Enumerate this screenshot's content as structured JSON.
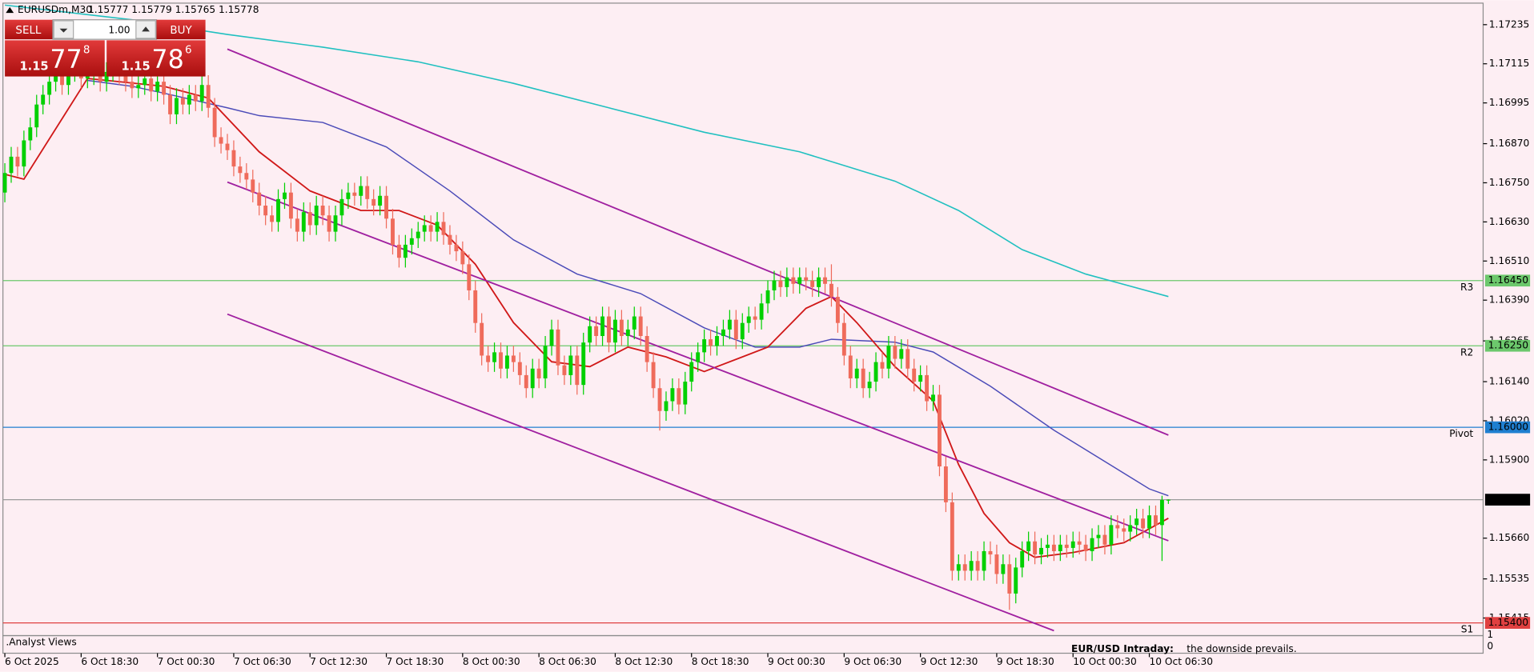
{
  "chart_data": {
    "type": "candlestick",
    "title": "EURUSDm,M30",
    "ohlc_text": "1.15777 1.15779 1.15765 1.15778",
    "open": [
      1.1672,
      1.1678,
      1.1683,
      1.168,
      1.1688,
      1.1692,
      1.1699,
      1.1702,
      1.1706,
      1.1708,
      1.1705,
      1.1709,
      1.171,
      1.1707,
      1.1708,
      1.171,
      1.1706,
      1.1709,
      1.1711,
      1.1708,
      1.1706,
      1.1704,
      1.1705,
      1.1707,
      1.1703,
      1.1706,
      1.1702,
      1.1696,
      1.1701,
      1.1699,
      1.1702,
      1.17,
      1.1705,
      1.1698,
      1.1689,
      1.1687,
      1.1685,
      1.168,
      1.1678,
      1.1676,
      1.1672,
      1.1668,
      1.1665,
      1.1663,
      1.167,
      1.1672,
      1.1664,
      1.166,
      1.1666,
      1.1662,
      1.1668,
      1.1665,
      1.166,
      1.1665,
      1.167,
      1.1672,
      1.1671,
      1.1674,
      1.167,
      1.1668,
      1.1671,
      1.1664,
      1.1656,
      1.1652,
      1.1656,
      1.1658,
      1.166,
      1.1662,
      1.166,
      1.1663,
      1.1659,
      1.1656,
      1.1654,
      1.165,
      1.1642,
      1.1632,
      1.1622,
      1.162,
      1.1623,
      1.1618,
      1.1622,
      1.162,
      1.1616,
      1.1612,
      1.1618,
      1.1615,
      1.1625,
      1.163,
      1.1619,
      1.1616,
      1.1622,
      1.1613,
      1.1626,
      1.1631,
      1.1628,
      1.1634,
      1.1626,
      1.1633,
      1.1628,
      1.163,
      1.1634,
      1.1628,
      1.162,
      1.1612,
      1.1605,
      1.1608,
      1.1612,
      1.1607,
      1.1614,
      1.162,
      1.1623,
      1.1627,
      1.1625,
      1.1628,
      1.163,
      1.1633,
      1.1627,
      1.1632,
      1.1634,
      1.1633,
      1.1638,
      1.1642,
      1.1645,
      1.1643,
      1.1646,
      1.1644,
      1.1646,
      1.1645,
      1.1643,
      1.1646,
      1.1644,
      1.164,
      1.1632,
      1.1622,
      1.1615,
      1.1618,
      1.1612,
      1.1614,
      1.162,
      1.1618,
      1.1625,
      1.1621,
      1.1624,
      1.1618,
      1.1614,
      1.1616,
      1.1608,
      1.161,
      1.1588,
      1.1577,
      1.1556,
      1.1558,
      1.1556,
      1.1559,
      1.1556,
      1.1562,
      1.1561,
      1.1555,
      1.1558,
      1.1549,
      1.1557,
      1.1562,
      1.1565,
      1.1561,
      1.1563,
      1.1564,
      1.1562,
      1.1564,
      1.1563,
      1.1565,
      1.1564,
      1.1562,
      1.1566,
      1.1567,
      1.1564,
      1.157,
      1.1569,
      1.1568,
      1.157,
      1.1572,
      1.1569,
      1.1573,
      1.157,
      1.15777
    ],
    "high": [
      1.1681,
      1.1686,
      1.1686,
      1.1691,
      1.1695,
      1.1702,
      1.1705,
      1.1709,
      1.1711,
      1.1711,
      1.1712,
      1.1713,
      1.1713,
      1.1711,
      1.1713,
      1.1713,
      1.1712,
      1.1714,
      1.1714,
      1.1711,
      1.1709,
      1.1708,
      1.171,
      1.171,
      1.1709,
      1.1709,
      1.1705,
      1.1704,
      1.1704,
      1.1705,
      1.1705,
      1.1708,
      1.1708,
      1.1701,
      1.1692,
      1.169,
      1.1688,
      1.1683,
      1.1681,
      1.1679,
      1.1675,
      1.1671,
      1.1668,
      1.1673,
      1.1675,
      1.1675,
      1.1667,
      1.1669,
      1.1669,
      1.1671,
      1.1671,
      1.1668,
      1.1668,
      1.1673,
      1.1675,
      1.1675,
      1.1677,
      1.1677,
      1.1673,
      1.1674,
      1.1674,
      1.1667,
      1.1659,
      1.1659,
      1.1661,
      1.1663,
      1.1665,
      1.1665,
      1.1666,
      1.1666,
      1.1662,
      1.1659,
      1.1657,
      1.1653,
      1.1645,
      1.1635,
      1.1625,
      1.1626,
      1.1626,
      1.1625,
      1.1625,
      1.1623,
      1.1619,
      1.1621,
      1.1621,
      1.1628,
      1.1633,
      1.1633,
      1.1622,
      1.1625,
      1.1625,
      1.1629,
      1.1634,
      1.1634,
      1.1637,
      1.1637,
      1.1636,
      1.1636,
      1.1633,
      1.1637,
      1.1637,
      1.1631,
      1.1623,
      1.1615,
      1.1611,
      1.1615,
      1.1615,
      1.1617,
      1.1623,
      1.1626,
      1.163,
      1.163,
      1.1631,
      1.1633,
      1.1636,
      1.1636,
      1.1635,
      1.1637,
      1.1637,
      1.1641,
      1.1645,
      1.1648,
      1.1648,
      1.1649,
      1.1649,
      1.1649,
      1.1649,
      1.1648,
      1.1649,
      1.1649,
      1.165,
      1.1643,
      1.1635,
      1.1625,
      1.1621,
      1.1621,
      1.1617,
      1.1623,
      1.1623,
      1.1628,
      1.1628,
      1.1627,
      1.1627,
      1.1621,
      1.1619,
      1.1619,
      1.1613,
      1.1613,
      1.1591,
      1.158,
      1.1561,
      1.1561,
      1.1562,
      1.1562,
      1.1565,
      1.1565,
      1.1564,
      1.1561,
      1.1561,
      1.156,
      1.1565,
      1.1568,
      1.1568,
      1.1566,
      1.1567,
      1.1567,
      1.1567,
      1.1567,
      1.1568,
      1.1568,
      1.1567,
      1.1569,
      1.157,
      1.157,
      1.1573,
      1.1573,
      1.1572,
      1.1573,
      1.1575,
      1.1575,
      1.1576,
      1.1576,
      1.1579,
      1.15779
    ],
    "low": [
      1.1669,
      1.1675,
      1.1677,
      1.1677,
      1.1685,
      1.1689,
      1.1696,
      1.1699,
      1.1703,
      1.1702,
      1.1702,
      1.1706,
      1.1704,
      1.1704,
      1.1705,
      1.1703,
      1.1703,
      1.1706,
      1.1705,
      1.1703,
      1.1701,
      1.1701,
      1.1702,
      1.17,
      1.17,
      1.1699,
      1.1693,
      1.1693,
      1.1696,
      1.1696,
      1.1697,
      1.1697,
      1.1695,
      1.1686,
      1.1684,
      1.1682,
      1.1677,
      1.1675,
      1.1673,
      1.1669,
      1.1665,
      1.1662,
      1.166,
      1.166,
      1.1667,
      1.1661,
      1.1657,
      1.1657,
      1.1659,
      1.1659,
      1.1662,
      1.1657,
      1.1657,
      1.1662,
      1.1667,
      1.1668,
      1.1668,
      1.1667,
      1.1665,
      1.1665,
      1.1661,
      1.1653,
      1.1649,
      1.1649,
      1.1653,
      1.1655,
      1.1657,
      1.1657,
      1.1657,
      1.1656,
      1.1653,
      1.1651,
      1.1647,
      1.1639,
      1.1629,
      1.1619,
      1.1617,
      1.1617,
      1.1615,
      1.1615,
      1.1617,
      1.1613,
      1.1609,
      1.1609,
      1.1612,
      1.1612,
      1.1622,
      1.1616,
      1.1613,
      1.1613,
      1.161,
      1.161,
      1.1623,
      1.1625,
      1.1625,
      1.1623,
      1.1623,
      1.1625,
      1.1625,
      1.1627,
      1.1625,
      1.1617,
      1.1609,
      1.1599,
      1.1602,
      1.1605,
      1.1604,
      1.1604,
      1.1611,
      1.1617,
      1.162,
      1.1622,
      1.1622,
      1.1625,
      1.1627,
      1.1624,
      1.1624,
      1.1629,
      1.163,
      1.163,
      1.1635,
      1.1639,
      1.164,
      1.164,
      1.1641,
      1.1641,
      1.1642,
      1.164,
      1.164,
      1.1641,
      1.1637,
      1.1629,
      1.1619,
      1.1612,
      1.1612,
      1.1609,
      1.1609,
      1.1611,
      1.1615,
      1.1615,
      1.1618,
      1.1618,
      1.1615,
      1.1611,
      1.1611,
      1.1605,
      1.1605,
      1.1585,
      1.1574,
      1.1553,
      1.1553,
      1.1553,
      1.1553,
      1.1553,
      1.1553,
      1.1558,
      1.1552,
      1.1552,
      1.1544,
      1.1546,
      1.1554,
      1.1559,
      1.1558,
      1.1558,
      1.156,
      1.1559,
      1.1559,
      1.156,
      1.156,
      1.1561,
      1.1559,
      1.1559,
      1.1563,
      1.1561,
      1.1561,
      1.1566,
      1.1565,
      1.1565,
      1.1567,
      1.1566,
      1.1566,
      1.1567,
      1.1559,
      1.15765
    ],
    "close": [
      1.1678,
      1.1683,
      1.168,
      1.1688,
      1.1692,
      1.1699,
      1.1702,
      1.1706,
      1.1708,
      1.1705,
      1.1709,
      1.171,
      1.1707,
      1.1708,
      1.171,
      1.1706,
      1.1709,
      1.1711,
      1.1708,
      1.1706,
      1.1704,
      1.1705,
      1.1707,
      1.1703,
      1.1706,
      1.1702,
      1.1696,
      1.1701,
      1.1699,
      1.1702,
      1.17,
      1.1705,
      1.1698,
      1.1689,
      1.1687,
      1.1685,
      1.168,
      1.1678,
      1.1676,
      1.1672,
      1.1668,
      1.1665,
      1.1663,
      1.167,
      1.1672,
      1.1664,
      1.166,
      1.1666,
      1.1662,
      1.1668,
      1.1665,
      1.166,
      1.1665,
      1.167,
      1.1672,
      1.1671,
      1.1674,
      1.167,
      1.1668,
      1.1671,
      1.1664,
      1.1656,
      1.1652,
      1.1656,
      1.1658,
      1.166,
      1.1662,
      1.166,
      1.1663,
      1.1659,
      1.1656,
      1.1654,
      1.165,
      1.1642,
      1.1632,
      1.1622,
      1.162,
      1.1623,
      1.1618,
      1.1622,
      1.162,
      1.1616,
      1.1612,
      1.1618,
      1.1615,
      1.1625,
      1.163,
      1.1619,
      1.1616,
      1.1622,
      1.1613,
      1.1626,
      1.1631,
      1.1628,
      1.1634,
      1.1626,
      1.1633,
      1.1628,
      1.163,
      1.1634,
      1.1628,
      1.162,
      1.1612,
      1.1605,
      1.1608,
      1.1612,
      1.1607,
      1.1614,
      1.162,
      1.1623,
      1.1627,
      1.1625,
      1.1628,
      1.163,
      1.1633,
      1.1627,
      1.1632,
      1.1634,
      1.1633,
      1.1638,
      1.1642,
      1.1645,
      1.1643,
      1.1646,
      1.1644,
      1.1646,
      1.1645,
      1.1643,
      1.1646,
      1.1644,
      1.164,
      1.1632,
      1.1622,
      1.1615,
      1.1618,
      1.1612,
      1.1614,
      1.162,
      1.1618,
      1.1625,
      1.1621,
      1.1624,
      1.1618,
      1.1614,
      1.1616,
      1.1608,
      1.161,
      1.1588,
      1.1577,
      1.1556,
      1.1558,
      1.1556,
      1.1559,
      1.1556,
      1.1562,
      1.1561,
      1.1555,
      1.1558,
      1.1549,
      1.1557,
      1.1562,
      1.1565,
      1.1561,
      1.1563,
      1.1564,
      1.1562,
      1.1564,
      1.1563,
      1.1565,
      1.1564,
      1.1562,
      1.1566,
      1.1567,
      1.1564,
      1.157,
      1.1569,
      1.1568,
      1.157,
      1.1572,
      1.1569,
      1.1573,
      1.157,
      1.15777,
      1.15778
    ],
    "up_color": "#00d000",
    "down_color": "#ef6b5b",
    "xlim": [
      -0.3,
      232.5
    ],
    "ylim": [
      1.15361,
      1.17301
    ],
    "xticks": [
      {
        "value": 0,
        "label": "6 Oct 2025"
      },
      {
        "value": 12,
        "label": "6 Oct 18:30"
      },
      {
        "value": 24,
        "label": "7 Oct 00:30"
      },
      {
        "value": 36,
        "label": "7 Oct 06:30"
      },
      {
        "value": 48,
        "label": "7 Oct 12:30"
      },
      {
        "value": 60,
        "label": "7 Oct 18:30"
      },
      {
        "value": 72,
        "label": "8 Oct 00:30"
      },
      {
        "value": 84,
        "label": "8 Oct 06:30"
      },
      {
        "value": 96,
        "label": "8 Oct 12:30"
      },
      {
        "value": 108,
        "label": "8 Oct 18:30"
      },
      {
        "value": 120,
        "label": "9 Oct 00:30"
      },
      {
        "value": 132,
        "label": "9 Oct 06:30"
      },
      {
        "value": 144,
        "label": "9 Oct 12:30"
      },
      {
        "value": 156,
        "label": "9 Oct 18:30"
      },
      {
        "value": 168,
        "label": "10 Oct 00:30"
      },
      {
        "value": 180,
        "label": "10 Oct 06:30"
      }
    ],
    "yticks": [
      1.17235,
      1.17115,
      1.16995,
      {
        "value": 1.1687,
        "label": "1.16870"
      },
      {
        "value": 1.1675,
        "label": "1.16750"
      },
      {
        "value": 1.1663,
        "label": "1.16630"
      },
      {
        "value": 1.1651,
        "label": "1.16510"
      },
      {
        "value": 1.1639,
        "label": "1.16390"
      },
      1.16265,
      {
        "value": 1.1614,
        "label": "1.16140"
      },
      {
        "value": 1.1602,
        "label": "1.16020"
      },
      {
        "value": 1.159,
        "label": "1.15900"
      },
      {
        "value": 1.1566,
        "label": "1.15660"
      },
      1.15535,
      1.15415
    ],
    "series": [
      {
        "color": "#20c0c0",
        "width": 1.3,
        "x": [
          0,
          20,
          35,
          50,
          65,
          80,
          95,
          110,
          125,
          140,
          150,
          160,
          170,
          183
        ],
        "values": [
          1.17295,
          1.1725,
          1.17205,
          1.17166,
          1.17121,
          1.17055,
          1.1698,
          1.16905,
          1.16845,
          1.16755,
          1.16665,
          1.16545,
          1.1647,
          1.16401
        ]
      },
      {
        "color": "#4b4bb8",
        "width": 1.2,
        "x": [
          13,
          20,
          25,
          35,
          40,
          50,
          60,
          70,
          80,
          90,
          100,
          110,
          118,
          125,
          130,
          140,
          146,
          155,
          165,
          175,
          180,
          183
        ],
        "values": [
          1.17064,
          1.17046,
          1.17025,
          1.1698,
          1.16956,
          1.16935,
          1.1686,
          1.16725,
          1.16575,
          1.1647,
          1.1641,
          1.16305,
          1.16246,
          1.16246,
          1.1627,
          1.16261,
          1.16231,
          1.16126,
          1.15991,
          1.15871,
          1.15811,
          1.1579
        ]
      },
      {
        "color": "#d01818",
        "width": 1.5,
        "x": [
          0,
          3,
          13,
          25,
          32,
          40,
          48,
          56,
          62,
          68,
          74,
          80,
          86,
          92,
          98,
          104,
          110,
          116,
          120,
          126,
          130,
          134,
          140,
          146,
          150,
          154,
          158,
          162,
          168,
          176,
          183
        ],
        "values": [
          1.16776,
          1.16761,
          1.1707,
          1.17046,
          1.1701,
          1.16845,
          1.16725,
          1.16665,
          1.16665,
          1.1662,
          1.165,
          1.16321,
          1.16201,
          1.16186,
          1.16246,
          1.16216,
          1.16171,
          1.16216,
          1.16246,
          1.16365,
          1.16401,
          1.16321,
          1.16186,
          1.16081,
          1.15886,
          1.15736,
          1.15646,
          1.15601,
          1.15616,
          1.15646,
          1.15721
        ]
      },
      {
        "color": "#a020a0",
        "width": 1.5,
        "x": [
          35,
          183
        ],
        "values": [
          1.1716,
          1.15976
        ]
      },
      {
        "color": "#a020a0",
        "width": 1.5,
        "x": [
          35,
          183
        ],
        "values": [
          1.16752,
          1.15652
        ]
      },
      {
        "color": "#a020a0",
        "width": 1.5,
        "x": [
          35,
          165
        ],
        "values": [
          1.16347,
          1.15376
        ]
      }
    ],
    "levels": [
      {
        "name": "R3",
        "value": 1.1645,
        "value_label": "1.16450",
        "color": "#6cc86c"
      },
      {
        "name": "R2",
        "value": 1.1625,
        "value_label": "1.16250",
        "color": "#6cc86c"
      },
      {
        "name": "Pivot",
        "value": 1.16,
        "value_label": "1.16000",
        "color": "#1f7fd0"
      },
      {
        "name": "S1",
        "value": 1.154,
        "value_label": "1.15400",
        "color": "#e04040"
      }
    ],
    "last_price": 1.15778,
    "last_price_color": "#9a9a9a"
  },
  "panel": {
    "sell": "SELL",
    "buy": "BUY",
    "lot": "1.00",
    "sell_price": {
      "big": "1.15",
      "pips": "77",
      "point": "8"
    },
    "buy_price": {
      "big": "1.15",
      "pips": "78",
      "point": "6"
    }
  },
  "indicator_window": {
    "name": ".Analyst Views",
    "ticks": [
      "1",
      "0"
    ]
  },
  "news": {
    "headline": "EUR/USD Intraday:",
    "text": "the downside prevails."
  }
}
